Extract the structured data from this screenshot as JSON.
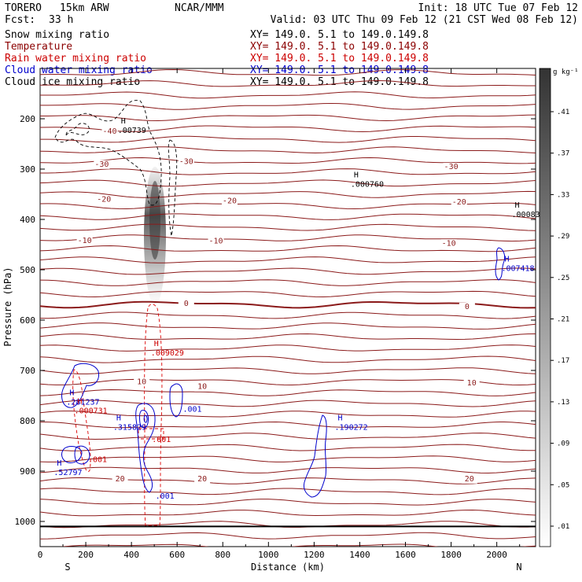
{
  "header": {
    "model": "TORERO",
    "resolution": "15km ARW",
    "center": "NCAR/MMM",
    "init": "Init: 18 UTC Tue 07 Feb 12",
    "fcst_label": "Fcst:",
    "fcst_value": "33 h",
    "valid": "Valid: 03 UTC Thu 09 Feb 12 (21 CST Wed 08 Feb 12)",
    "xs_text": "XY= 149.0.  5.1 to 149.0.149.8"
  },
  "legend": [
    {
      "name": "Snow mixing ratio",
      "color": "#000000"
    },
    {
      "name": "Temperature",
      "color": "#8b0000"
    },
    {
      "name": "Rain water mixing ratio",
      "color": "#cc0000"
    },
    {
      "name": "Cloud water mixing ratio",
      "color": "#0000cc"
    },
    {
      "name": "Cloud ice mixing ratio",
      "color": "#000000"
    }
  ],
  "chart_data": {
    "type": "cross-section",
    "xlabel": "Distance (km)",
    "ylabel": "Pressure (hPa)",
    "xlim": [
      0,
      2170
    ],
    "ylim": [
      1050,
      100
    ],
    "x_ticks": [
      0,
      200,
      400,
      600,
      800,
      1000,
      1200,
      1400,
      1600,
      1800,
      2000
    ],
    "y_ticks": [
      200,
      300,
      400,
      500,
      600,
      700,
      800,
      900,
      1000
    ],
    "x_end_labels": {
      "left": "S",
      "right": "N"
    },
    "colorbar": {
      "unit": "g kg⁻¹",
      "ticks": [
        ".01",
        ".05",
        ".09",
        ".13",
        ".17",
        ".21",
        ".25",
        ".29",
        ".33",
        ".37",
        ".41"
      ]
    },
    "temperature_labels": [
      {
        "text": "-40",
        "x": 305,
        "p": 230
      },
      {
        "text": "-30",
        "x": 270,
        "p": 295
      },
      {
        "text": "-30",
        "x": 640,
        "p": 290
      },
      {
        "text": "-30",
        "x": 1800,
        "p": 300
      },
      {
        "text": "-20",
        "x": 280,
        "p": 365
      },
      {
        "text": "-20",
        "x": 830,
        "p": 368
      },
      {
        "text": "-20",
        "x": 1835,
        "p": 370
      },
      {
        "text": "-10",
        "x": 195,
        "p": 447
      },
      {
        "text": "-10",
        "x": 770,
        "p": 448
      },
      {
        "text": "-10",
        "x": 1790,
        "p": 452
      },
      {
        "text": "0",
        "x": 640,
        "p": 572
      },
      {
        "text": "0",
        "x": 1870,
        "p": 578
      },
      {
        "text": "10",
        "x": 445,
        "p": 727
      },
      {
        "text": "10",
        "x": 710,
        "p": 737
      },
      {
        "text": "10",
        "x": 1890,
        "p": 730
      },
      {
        "text": "20",
        "x": 350,
        "p": 920
      },
      {
        "text": "20",
        "x": 710,
        "p": 920
      },
      {
        "text": "20",
        "x": 1880,
        "p": 920
      }
    ],
    "maxima": [
      {
        "value": ".00739",
        "x": 340,
        "p": 228,
        "color": "#000000"
      },
      {
        "value": ".000760",
        "x": 1360,
        "p": 335,
        "color": "#000000"
      },
      {
        "value": ".000836",
        "x": 2065,
        "p": 395,
        "color": "#000000"
      },
      {
        "value": ".007418",
        "x": 2020,
        "p": 502,
        "color": "#0000cc"
      },
      {
        "value": ".009029",
        "x": 485,
        "p": 670,
        "color": "#cc0000"
      },
      {
        "value": ".281237",
        "x": 115,
        "p": 768,
        "color": "#0000cc"
      },
      {
        "value": ".000731",
        "x": 150,
        "p": 785,
        "color": "#cc0000"
      },
      {
        "value": ".315829",
        "x": 320,
        "p": 818,
        "color": "#0000cc"
      },
      {
        "value": ".190272",
        "x": 1290,
        "p": 818,
        "color": "#0000cc"
      },
      {
        "value": ".52797",
        "x": 60,
        "p": 908,
        "color": "#0000cc"
      }
    ],
    "contour_labels": [
      {
        "text": ".001",
        "x": 625,
        "p": 782,
        "color": "#0000cc"
      },
      {
        "text": ".001",
        "x": 490,
        "p": 842,
        "color": "#cc0000"
      },
      {
        "text": ".001",
        "x": 210,
        "p": 882,
        "color": "#cc0000"
      },
      {
        "text": ".001",
        "x": 505,
        "p": 955,
        "color": "#0000cc"
      }
    ]
  }
}
